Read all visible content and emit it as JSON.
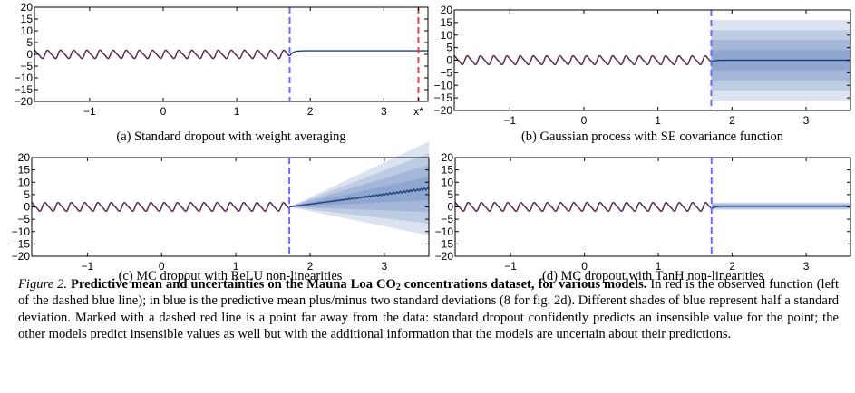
{
  "chart_data": [
    {
      "type": "line",
      "panel_id": "a",
      "x_ticks": [
        "−1",
        "0",
        "1",
        "2",
        "3",
        "x*"
      ],
      "y_ticks": [
        "20",
        "15",
        "10",
        "5",
        "0",
        "−5",
        "−10",
        "−15",
        "−20"
      ],
      "xlim": [
        -1.75,
        3.6
      ],
      "ylim": [
        -20,
        20
      ],
      "observed_until": 1.72,
      "far_point": 3.47,
      "prediction_after_data": 1.5,
      "uncertainty_band": "none",
      "caption": "(a) Standard dropout with weight averaging"
    },
    {
      "type": "line",
      "panel_id": "b",
      "x_ticks": [
        "−1",
        "0",
        "1",
        "2",
        "3"
      ],
      "y_ticks": [
        "20",
        "15",
        "10",
        "5",
        "0",
        "−5",
        "−10",
        "−15",
        "−20"
      ],
      "xlim": [
        -1.75,
        3.6
      ],
      "ylim": [
        -20,
        20
      ],
      "observed_until": 1.72,
      "prediction_after_data": 0,
      "uncertainty_band": "constant",
      "band_half_width": 16,
      "caption": "(b) Gaussian process with SE covariance function"
    },
    {
      "type": "line",
      "panel_id": "c",
      "x_ticks": [
        "−1",
        "0",
        "1",
        "2",
        "3"
      ],
      "y_ticks": [
        "20",
        "15",
        "10",
        "5",
        "0",
        "−5",
        "−10",
        "−15",
        "−20"
      ],
      "xlim": [
        -1.75,
        3.6
      ],
      "ylim": [
        -20,
        20
      ],
      "observed_until": 1.72,
      "prediction_end_value": 7.5,
      "uncertainty_band": "growing",
      "band_half_width": 19,
      "caption": "(c) MC dropout with ReLU non-linearities"
    },
    {
      "type": "line",
      "panel_id": "d",
      "x_ticks": [
        "−1",
        "0",
        "1",
        "2",
        "3"
      ],
      "y_ticks": [
        "20",
        "15",
        "10",
        "5",
        "0",
        "−5",
        "−10",
        "−15",
        "−20"
      ],
      "xlim": [
        -1.75,
        3.6
      ],
      "ylim": [
        -20,
        20
      ],
      "observed_until": 1.72,
      "prediction_after_data": 0.3,
      "uncertainty_band": "narrow",
      "band_half_width": 1.5,
      "caption": "(d) MC dropout with TanH non-linearities"
    }
  ],
  "colors": {
    "observed": "#d62728",
    "mean": "#1f3f7a",
    "band": "#2b5ba8",
    "data_boundary": "#6b6bff",
    "far_point_marker": "#e04848"
  },
  "caption": {
    "label": "Figure 2.",
    "title_pre": "Predictive mean and uncertainties on the Mauna Loa CO",
    "title_sub": "2",
    "title_post": " concentrations dataset, for various models.",
    "body": "In red is the observed function (left of the dashed blue line); in blue is the predictive mean plus/minus two standard deviations (8 for fig. 2d). Different shades of blue represent half a standard deviation. Marked with a dashed red line is a point far away from the data: standard dropout confidently predicts an insensible value for the point; the other models predict insensible values as well but with the additional information that the models are uncertain about their predictions."
  }
}
